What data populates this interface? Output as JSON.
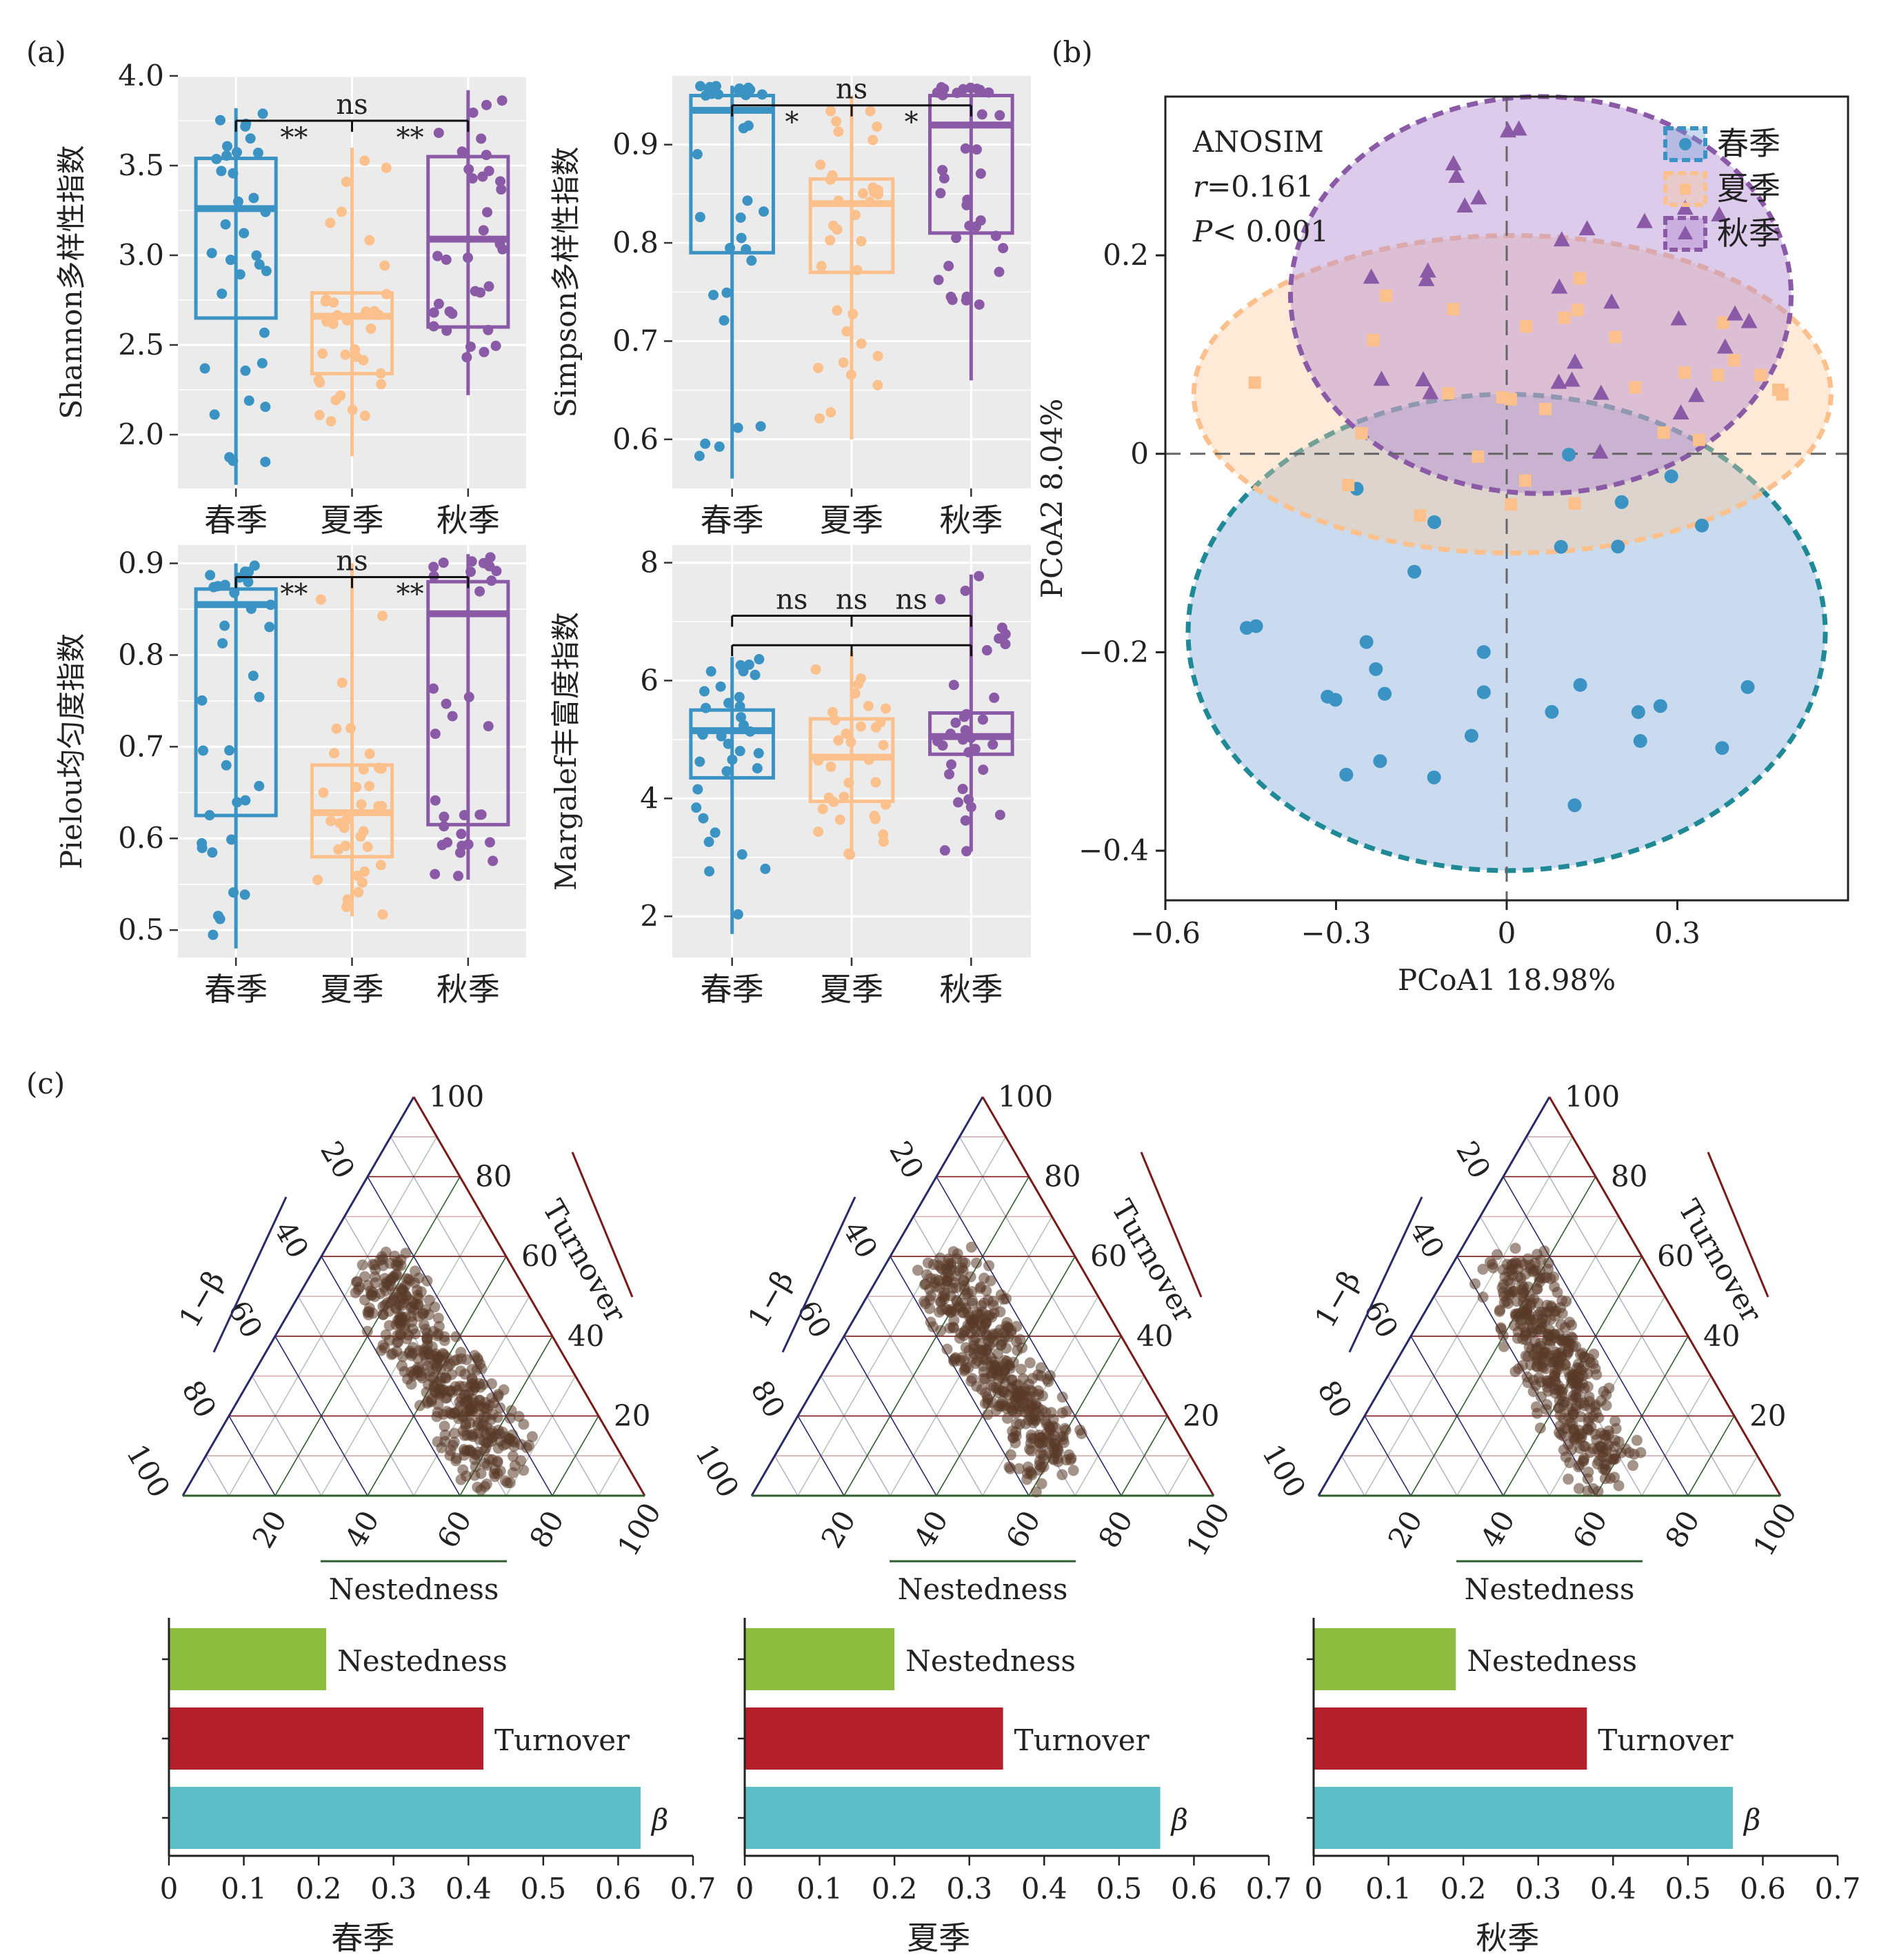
{
  "panels": {
    "a": "(a)",
    "b": "(b)",
    "c": "(c)"
  },
  "colors": {
    "spring": "#3a93c3",
    "summer": "#fbc08b",
    "autumn": "#8a5aa6",
    "nested": "#8dbc3e",
    "turnover": "#b3202a",
    "beta": "#5cbec6",
    "point": "#5a3a28",
    "tern_left": "#2a2a6a",
    "tern_right": "#7a1a1a",
    "tern_bottom": "#2e5e2e"
  },
  "chart_data": [
    {
      "id": "shannon",
      "type": "box",
      "ylabel": "Shannon多样性指数",
      "categories": [
        "春季",
        "夏季",
        "秋季"
      ],
      "ylim": [
        1.7,
        4.0
      ],
      "yticks": [
        2.0,
        2.5,
        3.0,
        3.5,
        4.0
      ],
      "ytick_labels": [
        "2.0",
        "2.5",
        "3.0",
        "3.5",
        "4.0"
      ],
      "boxes": [
        {
          "min": 1.72,
          "q1": 2.65,
          "median": 3.26,
          "q3": 3.54,
          "max": 3.82
        },
        {
          "min": 1.88,
          "q1": 2.34,
          "median": 2.66,
          "q3": 2.79,
          "max": 3.6
        },
        {
          "min": 2.22,
          "q1": 2.6,
          "median": 3.09,
          "q3": 3.55,
          "max": 3.92
        }
      ],
      "sig": {
        "top": "ns",
        "left": "**",
        "right": "**",
        "level": 3.75
      }
    },
    {
      "id": "simpson",
      "type": "box",
      "ylabel": "Simpson多样性指数",
      "categories": [
        "春季",
        "夏季",
        "秋季"
      ],
      "ylim": [
        0.55,
        0.97
      ],
      "yticks": [
        0.6,
        0.7,
        0.8,
        0.9
      ],
      "ytick_labels": [
        "0.6",
        "0.7",
        "0.8",
        "0.9"
      ],
      "boxes": [
        {
          "min": 0.56,
          "q1": 0.79,
          "median": 0.935,
          "q3": 0.95,
          "max": 0.96
        },
        {
          "min": 0.6,
          "q1": 0.77,
          "median": 0.84,
          "q3": 0.865,
          "max": 0.95
        },
        {
          "min": 0.66,
          "q1": 0.81,
          "median": 0.92,
          "q3": 0.95,
          "max": 0.96
        }
      ],
      "sig": {
        "top": "ns",
        "left": "*",
        "right": "*",
        "level": 0.94
      }
    },
    {
      "id": "pielou",
      "type": "box",
      "ylabel": "Pielou均匀度指数",
      "categories": [
        "春季",
        "夏季",
        "秋季"
      ],
      "ylim": [
        0.47,
        0.92
      ],
      "yticks": [
        0.5,
        0.6,
        0.7,
        0.8,
        0.9
      ],
      "ytick_labels": [
        "0.5",
        "0.6",
        "0.7",
        "0.8",
        "0.9"
      ],
      "boxes": [
        {
          "min": 0.48,
          "q1": 0.625,
          "median": 0.855,
          "q3": 0.872,
          "max": 0.9
        },
        {
          "min": 0.515,
          "q1": 0.58,
          "median": 0.628,
          "q3": 0.68,
          "max": 0.9
        },
        {
          "min": 0.555,
          "q1": 0.615,
          "median": 0.845,
          "q3": 0.88,
          "max": 0.91
        }
      ],
      "sig": {
        "top": "ns",
        "left": "**",
        "right": "**",
        "level": 0.885
      }
    },
    {
      "id": "margalef",
      "type": "box",
      "ylabel": "Margalef丰富度指数",
      "categories": [
        "春季",
        "夏季",
        "秋季"
      ],
      "ylim": [
        1.3,
        8.3
      ],
      "yticks": [
        2,
        4,
        6,
        8
      ],
      "ytick_labels": [
        "2",
        "4",
        "6",
        "8"
      ],
      "boxes": [
        {
          "min": 1.7,
          "q1": 4.35,
          "median": 5.15,
          "q3": 5.5,
          "max": 6.4
        },
        {
          "min": 3.0,
          "q1": 3.95,
          "median": 4.7,
          "q3": 5.35,
          "max": 6.5
        },
        {
          "min": 3.1,
          "q1": 4.75,
          "median": 5.05,
          "q3": 5.45,
          "max": 7.8
        }
      ],
      "sig": {
        "top": "ns",
        "left": "ns",
        "right": "ns",
        "level": 7.1
      }
    },
    {
      "id": "pcoa",
      "type": "scatter",
      "xlabel": "PCoA1 18.98%",
      "ylabel": "PCoA2 8.04%",
      "xlim": [
        -0.6,
        0.6
      ],
      "ylim": [
        -0.45,
        0.36
      ],
      "xticks": [
        -0.6,
        -0.3,
        0,
        0.3
      ],
      "xtick_labels": [
        "−0.6",
        "−0.3",
        "0",
        "0.3"
      ],
      "yticks": [
        -0.4,
        -0.2,
        0,
        0.2
      ],
      "ytick_labels": [
        "−0.4",
        "−0.2",
        "0",
        "0.2"
      ],
      "annotation": {
        "title": "ANOSIM",
        "r_label": "r",
        "r_value": "=0.161",
        "p_label": "P",
        "p_value": "< 0.001"
      },
      "legend": [
        "春季",
        "夏季",
        "秋季"
      ],
      "ellipses": [
        {
          "cx": 0.0,
          "cy": -0.18,
          "rx": 0.56,
          "ry": 0.24
        },
        {
          "cx": 0.01,
          "cy": 0.06,
          "rx": 0.56,
          "ry": 0.16
        },
        {
          "cx": 0.06,
          "cy": 0.16,
          "rx": 0.44,
          "ry": 0.2
        }
      ]
    },
    {
      "id": "tern",
      "type": "scatter",
      "subtype": "ternary",
      "axis_left": "1−β",
      "axis_right": "Turnover",
      "axis_bottom": "Nestedness",
      "ticks": [
        "20",
        "40",
        "60",
        "80",
        "100"
      ]
    },
    {
      "id": "bars",
      "type": "bar",
      "orientation": "horizontal",
      "categories": [
        "Nestedness",
        "Turnover",
        "β"
      ],
      "xlim": [
        0,
        0.7
      ],
      "xticks": [
        "0",
        "0.1",
        "0.2",
        "0.3",
        "0.4",
        "0.5",
        "0.6",
        "0.7"
      ],
      "series": [
        {
          "name": "春季",
          "values": [
            0.21,
            0.42,
            0.63
          ]
        },
        {
          "name": "夏季",
          "values": [
            0.2,
            0.345,
            0.555
          ]
        },
        {
          "name": "秋季",
          "values": [
            0.19,
            0.365,
            0.56
          ]
        }
      ]
    }
  ]
}
